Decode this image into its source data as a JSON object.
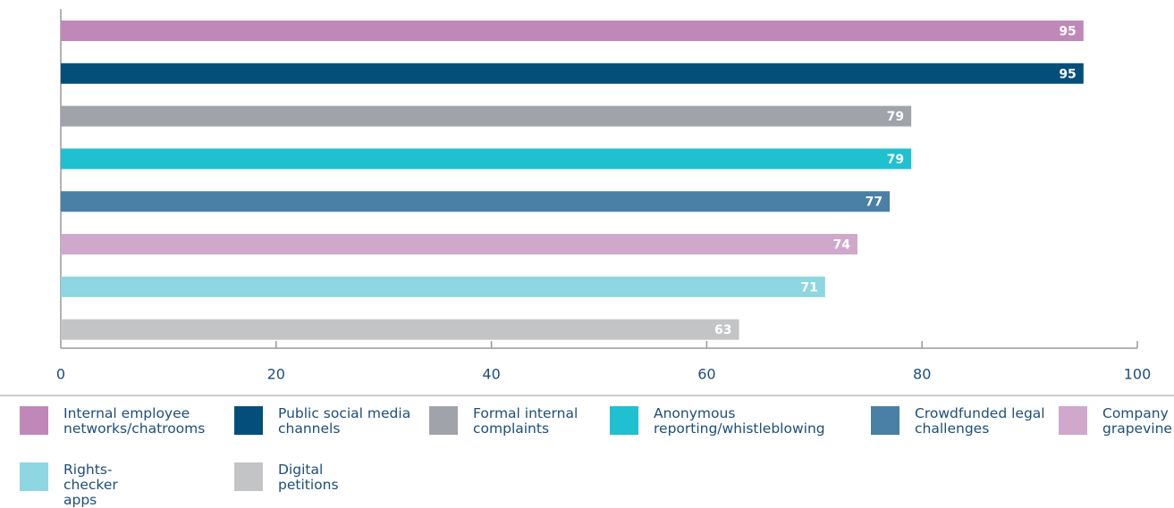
{
  "chart_data": {
    "type": "bar",
    "orientation": "horizontal",
    "categories": [
      "Internal employee networks/chatrooms",
      "Public social media channels",
      "Formal internal complaints",
      "Anonymous reporting/whistleblowing",
      "Crowdfunded legal challenges",
      "Company grapevine",
      "Rights-checker apps",
      "Digital petitions"
    ],
    "values": [
      95,
      95,
      79,
      79,
      77,
      74,
      71,
      63
    ],
    "colors": [
      "#c088b8",
      "#034f7a",
      "#a0a4aa",
      "#1fc0d0",
      "#4a80a6",
      "#d0a8cc",
      "#8dd6e2",
      "#c2c4c6"
    ],
    "xlim": [
      0,
      100
    ],
    "xticks": [
      0,
      20,
      40,
      60,
      80,
      100
    ],
    "legend": "bottom"
  }
}
